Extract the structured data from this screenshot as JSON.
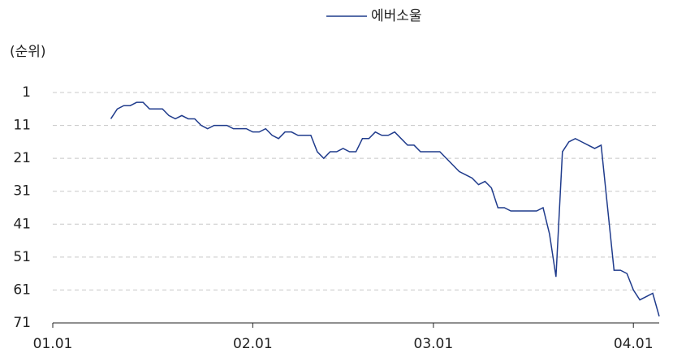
{
  "chart_data": {
    "type": "line",
    "y_label": "(순위)",
    "x": [
      9,
      10,
      11,
      12,
      13,
      14,
      15,
      16,
      17,
      18,
      19,
      20,
      21,
      22,
      23,
      24,
      25,
      26,
      27,
      28,
      29,
      30,
      31,
      32,
      33,
      34,
      35,
      36,
      37,
      38,
      39,
      40,
      41,
      42,
      43,
      44,
      45,
      46,
      47,
      48,
      49,
      50,
      51,
      52,
      53,
      54,
      55,
      56,
      57,
      58,
      59,
      60,
      61,
      62,
      63,
      64,
      65,
      66,
      67,
      68,
      69,
      70,
      71,
      72,
      73,
      74,
      75,
      76,
      77,
      78,
      79,
      80,
      81,
      82,
      83,
      84,
      85,
      87,
      88,
      89,
      90,
      91,
      92,
      93,
      94
    ],
    "series": [
      {
        "name": "에버소울",
        "color": "#1f3b8c",
        "values": [
          9,
          6,
          5,
          5,
          4,
          4,
          6,
          6,
          6,
          8,
          9,
          8,
          9,
          9,
          11,
          12,
          11,
          11,
          11,
          12,
          12,
          12,
          13,
          13,
          12,
          14,
          15,
          13,
          13,
          14,
          14,
          14,
          19,
          21,
          19,
          19,
          18,
          19,
          19,
          15,
          15,
          13,
          14,
          14,
          13,
          15,
          17,
          17,
          19,
          19,
          19,
          19,
          21,
          23,
          25,
          26,
          27,
          29,
          28,
          30,
          36,
          36,
          37,
          37,
          37,
          37,
          37,
          36,
          44,
          57,
          19,
          16,
          15,
          16,
          17,
          18,
          17,
          55,
          55,
          56,
          61,
          64,
          63,
          62,
          69
        ]
      }
    ],
    "xlim": [
      0,
      94
    ],
    "xticks": [
      {
        "value": 0,
        "label": "01.01"
      },
      {
        "value": 31,
        "label": "02.01"
      },
      {
        "value": 59,
        "label": "03.01"
      },
      {
        "value": 90,
        "label": "04.01"
      }
    ],
    "ylim": [
      71,
      1
    ],
    "yticks": [
      1,
      11,
      21,
      31,
      41,
      51,
      61,
      71
    ],
    "grid": true,
    "legend": "top"
  }
}
